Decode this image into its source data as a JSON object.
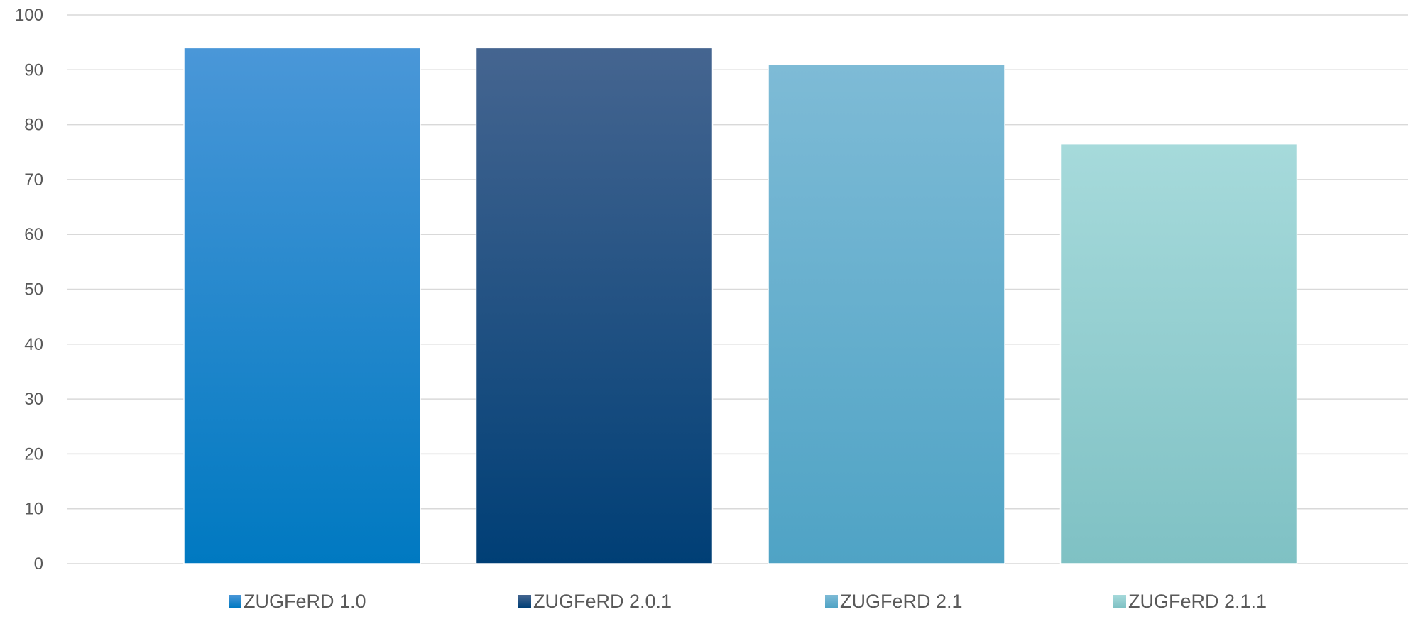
{
  "chart_data": {
    "type": "bar",
    "title": "",
    "xlabel": "",
    "ylabel": "",
    "ylim": [
      0,
      100
    ],
    "yticks": [
      0,
      10,
      20,
      30,
      40,
      50,
      60,
      70,
      80,
      90,
      100
    ],
    "grid": true,
    "legend_position": "bottom",
    "series": [
      {
        "name": "ZUGFeRD 1.0",
        "value": 94,
        "color_top": "#4a97d8",
        "color_bottom": "#0079c1"
      },
      {
        "name": "ZUGFeRD 2.0.1",
        "value": 94,
        "color_top": "#456590",
        "color_bottom": "#003f76"
      },
      {
        "name": "ZUGFeRD 2.1",
        "value": 91,
        "color_top": "#7ebbd6",
        "color_bottom": "#4fa3c5"
      },
      {
        "name": "ZUGFeRD 2.1.1",
        "value": 76.5,
        "color_top": "#a6dadb",
        "color_bottom": "#7fc1c4"
      }
    ]
  }
}
